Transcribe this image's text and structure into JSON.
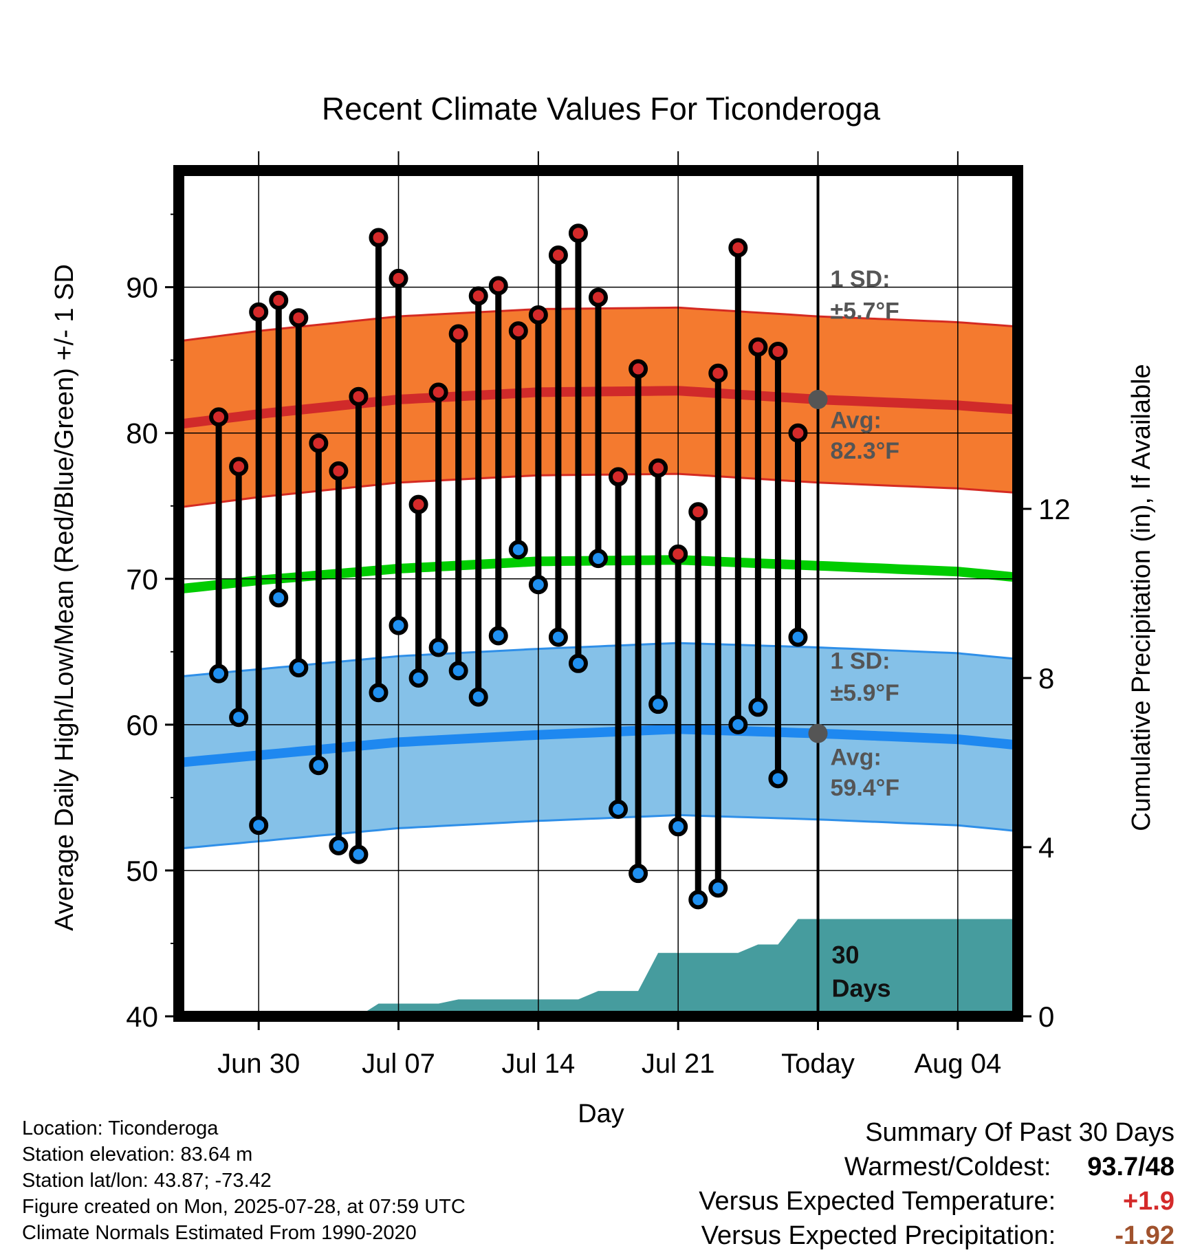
{
  "chart_data": {
    "type": "line",
    "title": "Recent Climate Values For Ticonderoga",
    "xlabel": "Day",
    "ylabel": "Average Daily High/Low/Mean (Red/Blue/Green) +/- 1 SD",
    "y2label": "Cumulative Precipitation (in), If Available",
    "ylim": [
      40,
      98
    ],
    "y2lim": [
      0,
      20
    ],
    "xlim": [
      "2025-06-26",
      "2025-08-07"
    ],
    "y_ticks": [
      "40",
      "50",
      "60",
      "70",
      "80",
      "90"
    ],
    "y2_ticks": [
      "0",
      "4",
      "8",
      "12"
    ],
    "x_ticks": [
      {
        "date": "2025-06-30",
        "label": "Jun 30"
      },
      {
        "date": "2025-07-07",
        "label": "Jul 07"
      },
      {
        "date": "2025-07-14",
        "label": "Jul 14"
      },
      {
        "date": "2025-07-21",
        "label": "Jul 21"
      },
      {
        "date": "2025-07-28",
        "label": "Today"
      },
      {
        "date": "2025-08-04",
        "label": "Aug 04"
      }
    ],
    "today": "2025-07-28",
    "days": [
      {
        "date": "2025-06-28",
        "high": 81.1,
        "low": 63.5
      },
      {
        "date": "2025-06-29",
        "high": 77.7,
        "low": 60.5
      },
      {
        "date": "2025-06-30",
        "high": 88.3,
        "low": 53.1
      },
      {
        "date": "2025-07-01",
        "high": 89.1,
        "low": 68.7
      },
      {
        "date": "2025-07-02",
        "high": 87.9,
        "low": 63.9
      },
      {
        "date": "2025-07-03",
        "high": 79.3,
        "low": 57.2
      },
      {
        "date": "2025-07-04",
        "high": 77.4,
        "low": 51.7
      },
      {
        "date": "2025-07-05",
        "high": 82.5,
        "low": 51.1
      },
      {
        "date": "2025-07-06",
        "high": 93.4,
        "low": 62.2
      },
      {
        "date": "2025-07-07",
        "high": 90.6,
        "low": 66.8
      },
      {
        "date": "2025-07-08",
        "high": 75.1,
        "low": 63.2
      },
      {
        "date": "2025-07-09",
        "high": 82.8,
        "low": 65.3
      },
      {
        "date": "2025-07-10",
        "high": 86.8,
        "low": 63.7
      },
      {
        "date": "2025-07-11",
        "high": 89.4,
        "low": 61.9
      },
      {
        "date": "2025-07-12",
        "high": 90.1,
        "low": 66.1
      },
      {
        "date": "2025-07-13",
        "high": 87.0,
        "low": 72.0
      },
      {
        "date": "2025-07-14",
        "high": 88.1,
        "low": 69.6
      },
      {
        "date": "2025-07-15",
        "high": 92.2,
        "low": 66.0
      },
      {
        "date": "2025-07-16",
        "high": 93.7,
        "low": 64.2
      },
      {
        "date": "2025-07-17",
        "high": 89.3,
        "low": 71.4
      },
      {
        "date": "2025-07-18",
        "high": 77.0,
        "low": 54.2
      },
      {
        "date": "2025-07-19",
        "high": 84.4,
        "low": 49.8
      },
      {
        "date": "2025-07-20",
        "high": 77.6,
        "low": 61.4
      },
      {
        "date": "2025-07-21",
        "high": 71.7,
        "low": 53.0
      },
      {
        "date": "2025-07-22",
        "high": 74.6,
        "low": 48.0
      },
      {
        "date": "2025-07-23",
        "high": 84.1,
        "low": 48.8
      },
      {
        "date": "2025-07-24",
        "high": 92.7,
        "low": 60.0
      },
      {
        "date": "2025-07-25",
        "high": 85.9,
        "low": 61.2
      },
      {
        "date": "2025-07-26",
        "high": 85.6,
        "low": 56.3
      },
      {
        "date": "2025-07-27",
        "high": 80.0,
        "low": 66.0
      }
    ],
    "normals": [
      {
        "date": "2025-06-26",
        "high": 80.6,
        "low": 57.4,
        "mean": 69.3
      },
      {
        "date": "2025-06-30",
        "high": 81.3,
        "low": 57.9,
        "mean": 69.9
      },
      {
        "date": "2025-07-07",
        "high": 82.3,
        "low": 58.8,
        "mean": 70.7
      },
      {
        "date": "2025-07-14",
        "high": 82.8,
        "low": 59.3,
        "mean": 71.2
      },
      {
        "date": "2025-07-21",
        "high": 82.9,
        "low": 59.7,
        "mean": 71.3
      },
      {
        "date": "2025-07-28",
        "high": 82.3,
        "low": 59.4,
        "mean": 70.9
      },
      {
        "date": "2025-08-04",
        "high": 81.9,
        "low": 59.0,
        "mean": 70.5
      },
      {
        "date": "2025-08-07",
        "high": 81.6,
        "low": 58.6,
        "mean": 70.1
      }
    ],
    "high_sd": 5.7,
    "low_sd": 5.9,
    "precip": [
      {
        "date": "2025-06-26",
        "value": 0.0
      },
      {
        "date": "2025-07-05",
        "value": 0.0
      },
      {
        "date": "2025-07-06",
        "value": 0.3
      },
      {
        "date": "2025-07-09",
        "value": 0.3
      },
      {
        "date": "2025-07-10",
        "value": 0.4
      },
      {
        "date": "2025-07-16",
        "value": 0.4
      },
      {
        "date": "2025-07-17",
        "value": 0.6
      },
      {
        "date": "2025-07-19",
        "value": 0.6
      },
      {
        "date": "2025-07-20",
        "value": 1.5
      },
      {
        "date": "2025-07-24",
        "value": 1.5
      },
      {
        "date": "2025-07-25",
        "value": 1.7
      },
      {
        "date": "2025-07-26",
        "value": 1.7
      },
      {
        "date": "2025-07-27",
        "value": 2.3
      },
      {
        "date": "2025-08-07",
        "value": 2.3
      }
    ],
    "annotations": {
      "high_sd_line1": "1 SD:",
      "high_sd_line2": "±5.7°F",
      "high_avg_line1": "Avg:",
      "high_avg_line2": "82.3°F",
      "low_sd_line1": "1 SD:",
      "low_sd_line2": "±5.9°F",
      "low_avg_line1": "Avg:",
      "low_avg_line2": "59.4°F",
      "precip_line1": "30",
      "precip_line2": "Days"
    },
    "colors": {
      "high_band": "#F47A2F",
      "high_edge": "#D42A22",
      "high_avg": "#D02A2A",
      "low_band": "#85C1E8",
      "low_edge": "#2F8FE8",
      "low_avg": "#1E88F0",
      "mean": "#00CC00",
      "precip": "#469C9E",
      "high_dot": "#D42A2A",
      "low_dot": "#2090F0",
      "annotation": "#555555"
    }
  },
  "info": {
    "location": "Location: Ticonderoga",
    "elevation": "Station elevation: 83.64 m",
    "latlon": "Station lat/lon: 43.87; -73.42",
    "created": "Figure created on Mon, 2025-07-28, at 07:59 UTC",
    "normals": "Climate Normals Estimated From 1990-2020"
  },
  "summary": {
    "title": "Summary Of Past 30 Days",
    "warmest_label": "Warmest/Coldest:",
    "warmest_value": "93.7/48",
    "temp_label": "Versus Expected Temperature:",
    "temp_value": "+1.9",
    "temp_color": "#D42A2A",
    "precip_label": "Versus Expected Precipitation:",
    "precip_value": "-1.92",
    "precip_color": "#A0522D"
  }
}
